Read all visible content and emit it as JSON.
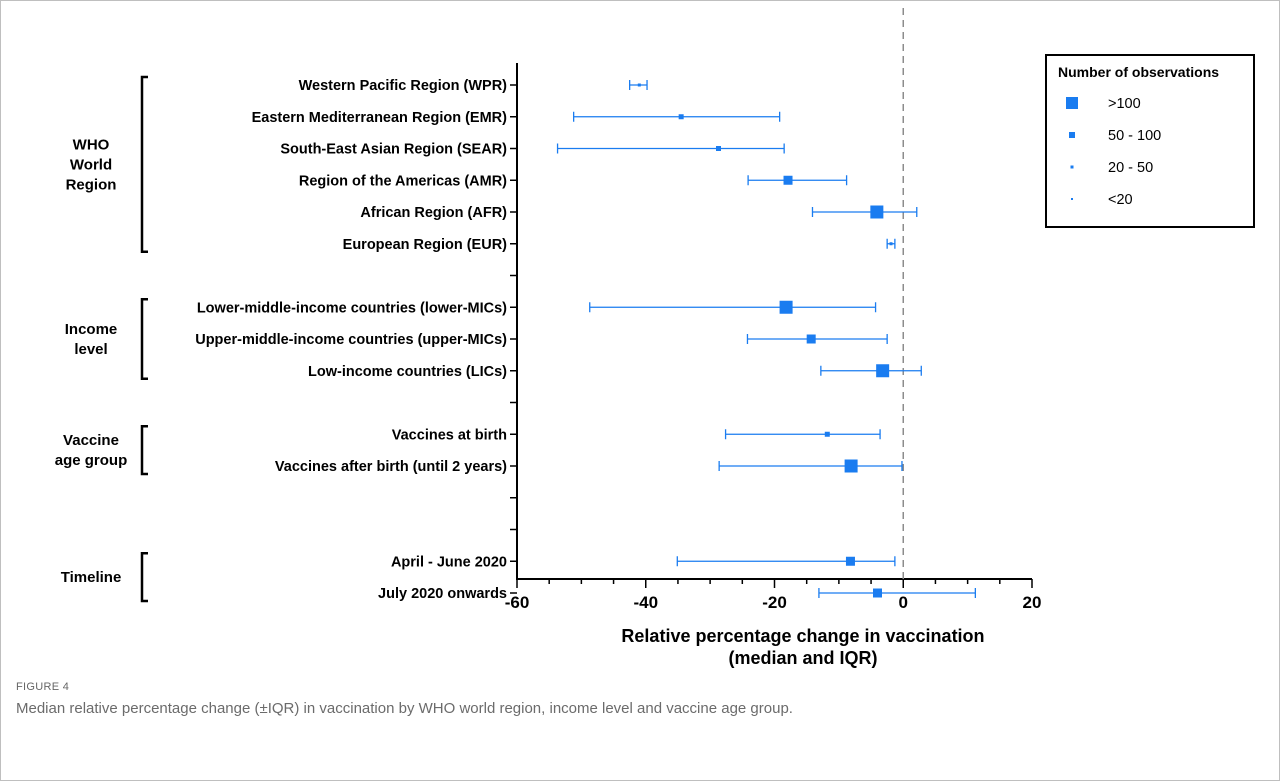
{
  "figure": {
    "number": "FIGURE 4",
    "caption": "Median relative percentage change (±IQR) in vaccination by WHO world region, income level and vaccine age group."
  },
  "legend": {
    "title": "Number of observations",
    "items": [
      {
        "label": ">100",
        "marker": "xl"
      },
      {
        "label": "50 - 100",
        "marker": "l"
      },
      {
        "label": "20 - 50",
        "marker": "m"
      },
      {
        "label": "<20",
        "marker": "s"
      }
    ]
  },
  "chart_data": {
    "type": "forest",
    "xlabel": [
      "Relative percentage change in vaccination",
      "(median and IQR)"
    ],
    "xlim": [
      -60,
      20
    ],
    "xticks": [
      -60,
      -40,
      -20,
      0,
      20
    ],
    "reference_line": 0,
    "color": "#1a7cf0",
    "groups": [
      {
        "label": [
          "WHO",
          "World",
          "Region"
        ],
        "rows": [
          {
            "label": "Western Pacific Region (WPR)",
            "median": -41,
            "q1": -42.5,
            "q3": -39.8,
            "n_class": "s"
          },
          {
            "label": "Eastern Mediterranean Region (EMR)",
            "median": -34.5,
            "q1": -51.2,
            "q3": -19.2,
            "n_class": "m"
          },
          {
            "label": "South-East Asian Region (SEAR)",
            "median": -28.7,
            "q1": -53.7,
            "q3": -18.5,
            "n_class": "m"
          },
          {
            "label": "Region of the Americas (AMR)",
            "median": -17.9,
            "q1": -24.1,
            "q3": -8.8,
            "n_class": "l"
          },
          {
            "label": "African Region (AFR)",
            "median": -4.1,
            "q1": -14.1,
            "q3": 2.1,
            "n_class": "xl"
          },
          {
            "label": "European Region (EUR)",
            "median": -1.9,
            "q1": -2.5,
            "q3": -1.3,
            "n_class": "s"
          }
        ]
      },
      {
        "label": [
          "Income",
          "level"
        ],
        "rows": [
          {
            "label": "Lower-middle-income countries (lower-MICs)",
            "median": -18.2,
            "q1": -48.7,
            "q3": -4.3,
            "n_class": "xl"
          },
          {
            "label": "Upper-middle-income countries (upper-MICs)",
            "median": -14.3,
            "q1": -24.2,
            "q3": -2.5,
            "n_class": "l"
          },
          {
            "label": "Low-income countries (LICs)",
            "median": -3.2,
            "q1": -12.8,
            "q3": 2.8,
            "n_class": "xl"
          }
        ]
      },
      {
        "label": [
          "Vaccine",
          "age group"
        ],
        "rows": [
          {
            "label": "Vaccines at birth",
            "median": -11.8,
            "q1": -27.6,
            "q3": -3.6,
            "n_class": "m"
          },
          {
            "label": "Vaccines after birth (until 2 years)",
            "median": -8.1,
            "q1": -28.6,
            "q3": -0.2,
            "n_class": "xl"
          },
          {
            "label": null,
            "median": null
          }
        ]
      },
      {
        "label": [
          "Timeline"
        ],
        "rows": [
          {
            "label": "April - June 2020",
            "median": -8.2,
            "q1": -35.1,
            "q3": -1.3,
            "n_class": "l"
          },
          {
            "label": "July 2020 onwards",
            "median": -4,
            "q1": -13.1,
            "q3": 11.2,
            "n_class": "l"
          }
        ]
      }
    ]
  }
}
